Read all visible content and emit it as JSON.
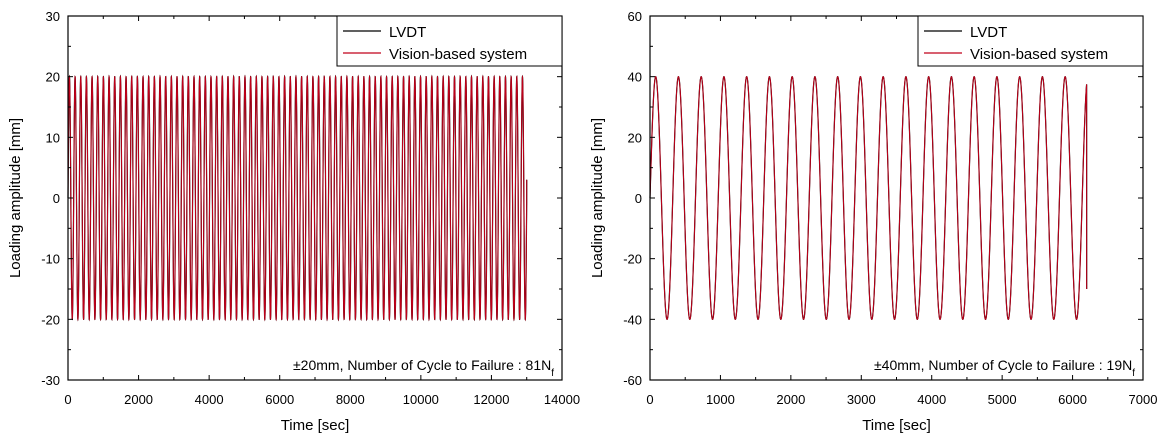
{
  "chart_data": [
    {
      "type": "line",
      "xlabel": "Time [sec]",
      "ylabel": "Loading amplitude [mm]",
      "xlim": [
        0,
        14000
      ],
      "ylim": [
        -30,
        30
      ],
      "xticks": [
        0,
        2000,
        4000,
        6000,
        8000,
        10000,
        12000,
        14000
      ],
      "xtick_labels": [
        "0",
        "2000",
        "4000",
        "6000",
        "8000",
        "10000",
        "12000",
        "14000"
      ],
      "yticks": [
        -30,
        -20,
        -10,
        0,
        10,
        20,
        30
      ],
      "ytick_labels": [
        "-30",
        "-20",
        "-10",
        "0",
        "10",
        "20",
        "30"
      ],
      "legend_position": "top-right",
      "grid": false,
      "annotation": {
        "prefix": "±20mm, Number of Cycle to Failure : 81N",
        "subscript": "f"
      },
      "series": [
        {
          "name": "LVDT",
          "color": "#000000",
          "signal": "sine",
          "amplitude": 20,
          "period": 160.49,
          "duration": 13000,
          "end_value": 3
        },
        {
          "name": "Vision-based system",
          "color": "#c0001a",
          "signal": "sine",
          "amplitude": 20,
          "period": 160.49,
          "duration": 13000,
          "end_value": 3
        }
      ]
    },
    {
      "type": "line",
      "xlabel": "Time [sec]",
      "ylabel": "Loading amplitude [mm]",
      "xlim": [
        0,
        7000
      ],
      "ylim": [
        -60,
        60
      ],
      "xticks": [
        0,
        1000,
        2000,
        3000,
        4000,
        5000,
        6000,
        7000
      ],
      "xtick_labels": [
        "0",
        "1000",
        "2000",
        "3000",
        "4000",
        "5000",
        "6000",
        "7000"
      ],
      "yticks": [
        -60,
        -40,
        -20,
        0,
        20,
        40,
        60
      ],
      "ytick_labels": [
        "-60",
        "-40",
        "-20",
        "0",
        "20",
        "40",
        "60"
      ],
      "legend_position": "top-right",
      "grid": false,
      "annotation": {
        "prefix": "±40mm, Number of Cycle to Failure : 19N",
        "subscript": "f"
      },
      "series": [
        {
          "name": "LVDT",
          "color": "#000000",
          "signal": "sine",
          "amplitude": 40,
          "period": 323,
          "duration": 6200,
          "end_value": -30
        },
        {
          "name": "Vision-based system",
          "color": "#c0001a",
          "signal": "sine",
          "amplitude": 40,
          "period": 323,
          "duration": 6200,
          "end_value": -30
        }
      ]
    }
  ]
}
